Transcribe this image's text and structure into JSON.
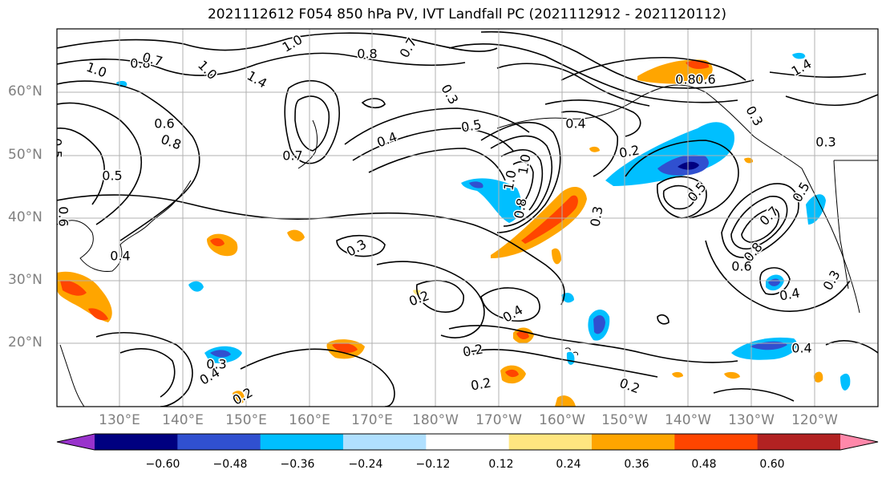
{
  "title": "2021112612 F054 850 hPa PV, IVT Landfall PC (2021112912 - 2021120112)",
  "lat_labels": [
    "60°N",
    "50°N",
    "40°N",
    "30°N",
    "20°N"
  ],
  "lon_labels": [
    "130°E",
    "140°E",
    "150°E",
    "160°E",
    "170°E",
    "180°W",
    "170°W",
    "160°W",
    "150°W",
    "140°W",
    "130°W",
    "120°W"
  ],
  "colorbar": {
    "colors": [
      "#9933cc",
      "#000080",
      "#3050d0",
      "#00bfff",
      "#b0e0ff",
      "#ffffff",
      "#ffe680",
      "#ffa500",
      "#ff4500",
      "#b22222",
      "#ff88aa"
    ],
    "tick_labels": [
      "−0.60",
      "−0.48",
      "−0.36",
      "−0.24",
      "−0.12",
      "0.12",
      "0.24",
      "0.36",
      "0.48",
      "0.60"
    ]
  },
  "contour_labels": [
    "1.0",
    "0.8",
    "0.7",
    "1.0",
    "1.4",
    "1.0",
    "0.8",
    "0.7",
    "0.3",
    "0.5",
    "0.4",
    "0.5",
    "0.6",
    "0.8",
    "0.7",
    "0.5",
    "0.6",
    "0.4",
    "1.0",
    "1.4",
    "0.8",
    "0.6",
    "0.4",
    "0.3",
    "0.2",
    "0.3",
    "0.5",
    "1.0",
    "0.8",
    "0.7",
    "0.3",
    "0.5",
    "0.8",
    "0.6",
    "0.3",
    "0.2",
    "0.4",
    "0.2",
    "0.2",
    "0.3",
    "0.4",
    "0.2",
    "0.2",
    "0.4",
    "0.4",
    "0.3"
  ]
}
